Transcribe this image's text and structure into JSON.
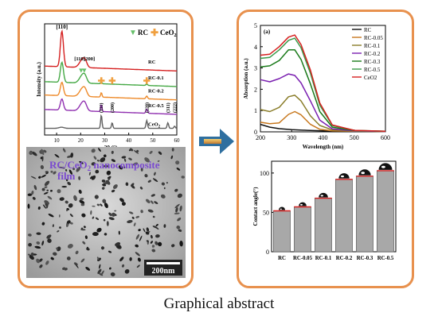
{
  "caption": "Graphical abstract",
  "xrd": {
    "y_label": "Intensity (a.u.)",
    "x_label": "2θ (°)",
    "x_ticks": [
      10,
      20,
      30,
      40,
      50,
      60
    ],
    "x_range": [
      5,
      60
    ],
    "legend": [
      {
        "symbol": "▼",
        "text": "RC",
        "color": "#66c06a"
      },
      {
        "symbol": "✚",
        "text": "CeO",
        "sub": "2",
        "color": "#f0a040"
      }
    ],
    "peak_labels": [
      "[110]",
      "[110]",
      "[200]"
    ],
    "series": [
      {
        "name": "RC",
        "color": "#d52020",
        "baseline": 0.62
      },
      {
        "name": "RC-0.1",
        "color": "#44a844",
        "baseline": 0.48
      },
      {
        "name": "RC-0.2",
        "color": "#ee8a2a",
        "baseline": 0.36
      },
      {
        "name": "RC-0.5",
        "color": "#9030b0",
        "baseline": 0.23
      },
      {
        "name": "CeO",
        "sub": "2",
        "color": "#606060",
        "baseline": 0.06
      }
    ],
    "ceo2_peaks": [
      {
        "label": "(111)",
        "x": 28.6
      },
      {
        "label": "(200)",
        "x": 33.1
      },
      {
        "label": "(220)",
        "x": 47.5
      },
      {
        "label": "(311)",
        "x": 56.3
      },
      {
        "label": "(222)",
        "x": 59.1
      }
    ],
    "rc_markers_x": [
      20.2,
      21.5
    ],
    "ceo2_markers_x": [
      28.6,
      33.1,
      47.5
    ]
  },
  "micrograph": {
    "label_line1": "RC/CeO",
    "label_sub": "2",
    "label_line1_rest": " nanocomposite",
    "label_line2": "film",
    "scale": "200nm"
  },
  "chart_data": [
    {
      "type": "line",
      "panel_label": "(a)",
      "xlabel": "Wavelength (nm)",
      "ylabel": "Absorption (a.u.)",
      "xlim": [
        200,
        600
      ],
      "ylim": [
        0,
        5
      ],
      "x_ticks": [
        200,
        300,
        400,
        500,
        600
      ],
      "y_ticks": [
        0,
        1,
        2,
        3,
        4,
        5
      ],
      "legend_position": "top-right",
      "series": [
        {
          "name": "RC",
          "color": "#111111",
          "points": [
            [
              200,
              0.35
            ],
            [
              230,
              0.22
            ],
            [
              260,
              0.15
            ],
            [
              300,
              0.1
            ],
            [
              350,
              0.07
            ],
            [
              400,
              0.05
            ],
            [
              500,
              0.03
            ],
            [
              600,
              0.02
            ]
          ]
        },
        {
          "name": "RC-0.05",
          "color": "#c8781e",
          "points": [
            [
              200,
              0.45
            ],
            [
              230,
              0.38
            ],
            [
              260,
              0.42
            ],
            [
              290,
              0.82
            ],
            [
              310,
              0.95
            ],
            [
              330,
              0.8
            ],
            [
              360,
              0.35
            ],
            [
              390,
              0.12
            ],
            [
              430,
              0.05
            ],
            [
              500,
              0.03
            ],
            [
              600,
              0.02
            ]
          ]
        },
        {
          "name": "RC-0.1",
          "color": "#8a7d2a",
          "points": [
            [
              200,
              1.05
            ],
            [
              230,
              0.95
            ],
            [
              260,
              1.15
            ],
            [
              290,
              1.65
            ],
            [
              310,
              1.72
            ],
            [
              330,
              1.45
            ],
            [
              360,
              0.75
            ],
            [
              390,
              0.3
            ],
            [
              430,
              0.09
            ],
            [
              500,
              0.04
            ],
            [
              600,
              0.02
            ]
          ]
        },
        {
          "name": "RC-0.2",
          "color": "#7a1fb0",
          "points": [
            [
              200,
              2.45
            ],
            [
              230,
              2.35
            ],
            [
              260,
              2.5
            ],
            [
              290,
              2.72
            ],
            [
              310,
              2.65
            ],
            [
              330,
              2.3
            ],
            [
              360,
              1.45
            ],
            [
              390,
              0.55
            ],
            [
              430,
              0.14
            ],
            [
              500,
              0.05
            ],
            [
              600,
              0.02
            ]
          ]
        },
        {
          "name": "RC-0.3",
          "color": "#1a7a1a",
          "points": [
            [
              200,
              3.05
            ],
            [
              230,
              3.1
            ],
            [
              260,
              3.35
            ],
            [
              290,
              3.85
            ],
            [
              310,
              3.85
            ],
            [
              330,
              3.4
            ],
            [
              360,
              2.25
            ],
            [
              390,
              0.95
            ],
            [
              430,
              0.22
            ],
            [
              500,
              0.06
            ],
            [
              600,
              0.03
            ]
          ]
        },
        {
          "name": "RC-0.5",
          "color": "#3a9a4a",
          "points": [
            [
              200,
              3.45
            ],
            [
              230,
              3.5
            ],
            [
              260,
              3.85
            ],
            [
              290,
              4.3
            ],
            [
              310,
              4.4
            ],
            [
              330,
              3.95
            ],
            [
              360,
              2.75
            ],
            [
              390,
              1.25
            ],
            [
              430,
              0.3
            ],
            [
              500,
              0.07
            ],
            [
              600,
              0.03
            ]
          ]
        },
        {
          "name": "CeO2",
          "color": "#d62020",
          "points": [
            [
              200,
              3.6
            ],
            [
              230,
              3.65
            ],
            [
              260,
              4.0
            ],
            [
              290,
              4.45
            ],
            [
              310,
              4.55
            ],
            [
              330,
              4.1
            ],
            [
              360,
              2.9
            ],
            [
              390,
              1.35
            ],
            [
              430,
              0.32
            ],
            [
              500,
              0.07
            ],
            [
              600,
              0.03
            ]
          ]
        }
      ]
    },
    {
      "type": "bar",
      "ylabel": "Contact angle(°)",
      "ylim": [
        0,
        115
      ],
      "y_ticks": [
        0,
        50,
        100
      ],
      "categories": [
        "RC",
        "RC-0.05",
        "RC-0.1",
        "RC-0.2",
        "RC-0.3",
        "RC-0.5"
      ],
      "values": [
        52,
        57,
        68,
        92,
        96,
        103
      ]
    }
  ]
}
